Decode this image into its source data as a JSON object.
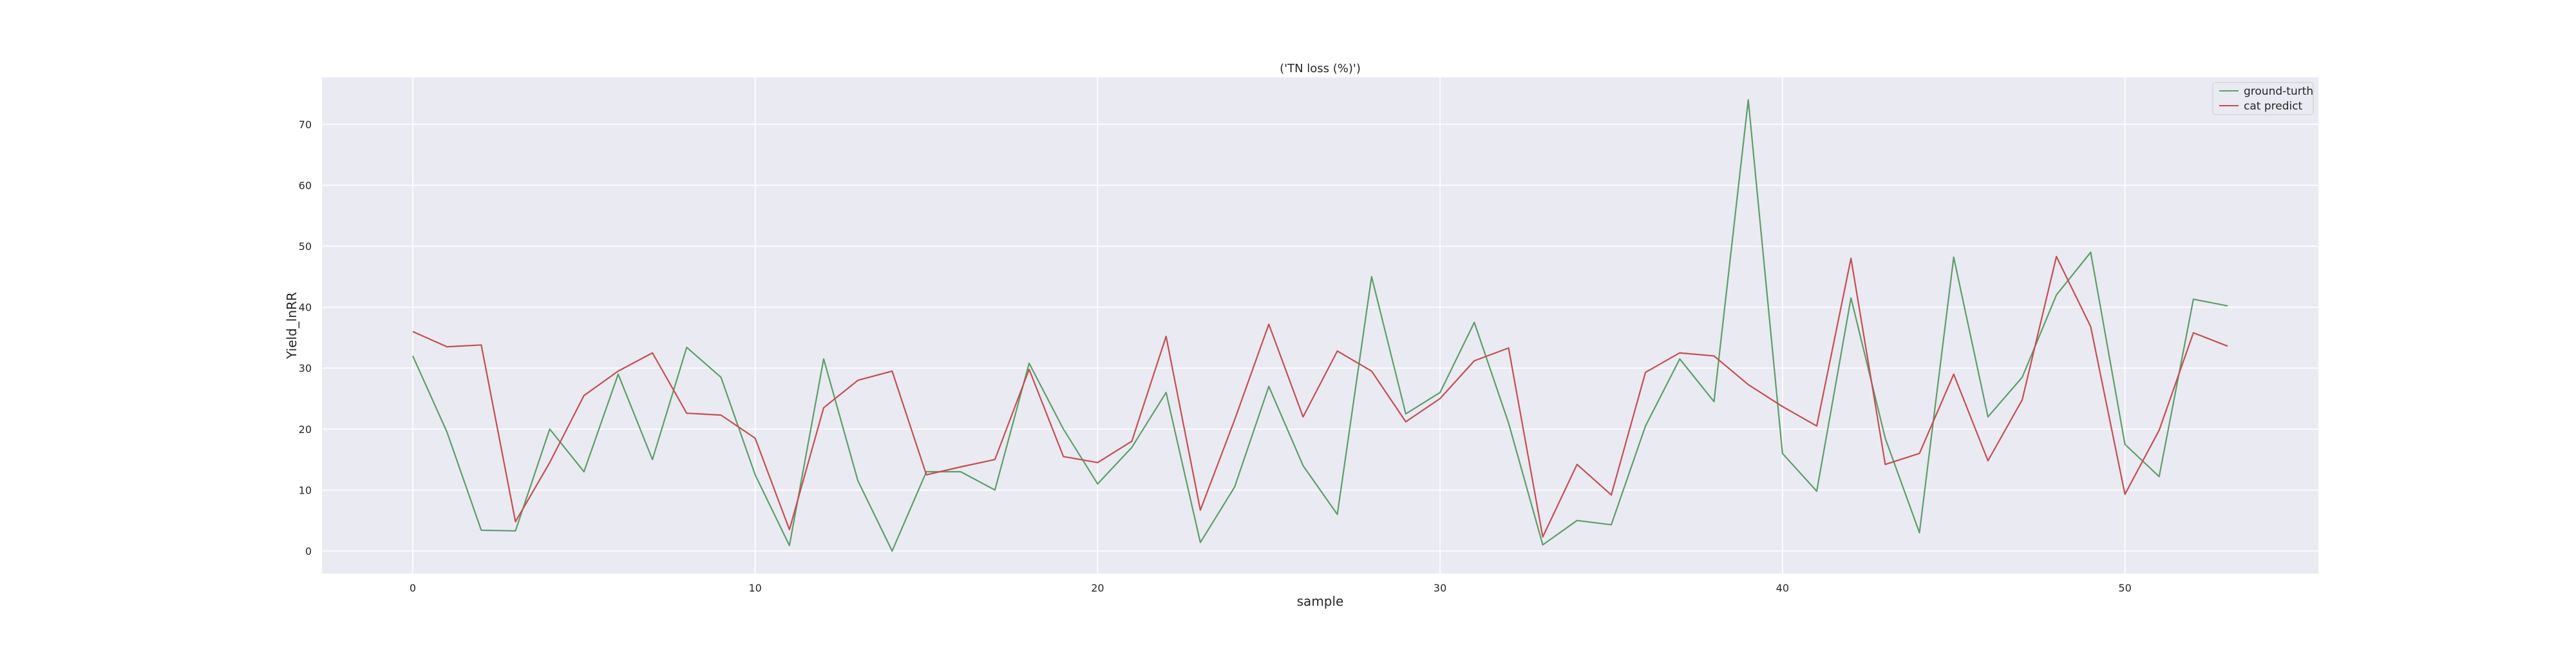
{
  "chart_data": {
    "type": "line",
    "title": "('TN loss (%)')",
    "xlabel": "sample",
    "ylabel": "Yield_lnRR",
    "xlim": [
      -2.65,
      55.65
    ],
    "ylim": [
      -3.7,
      77.7
    ],
    "xticks": [
      0,
      10,
      20,
      30,
      40,
      50
    ],
    "yticks": [
      0,
      10,
      20,
      30,
      40,
      50,
      60,
      70
    ],
    "grid": true,
    "legend_position": "top-right",
    "series": [
      {
        "name": "ground-turth",
        "color": "#5c9e6a",
        "x": [
          0,
          1,
          2,
          3,
          4,
          5,
          6,
          7,
          8,
          9,
          10,
          11,
          12,
          13,
          14,
          15,
          16,
          17,
          18,
          19,
          20,
          21,
          22,
          23,
          24,
          25,
          26,
          27,
          28,
          29,
          30,
          31,
          32,
          33,
          34,
          35,
          36,
          37,
          38,
          39,
          40,
          41,
          42,
          43,
          44,
          45,
          46,
          47,
          48,
          49,
          50,
          51,
          52,
          53
        ],
        "values": [
          32.0,
          19.5,
          3.4,
          3.3,
          20.0,
          13.0,
          29.0,
          15.0,
          33.4,
          28.5,
          12.5,
          0.9,
          31.5,
          11.5,
          0.0,
          13.0,
          13.0,
          10.0,
          30.8,
          20.0,
          11.0,
          17.0,
          26.0,
          1.4,
          10.5,
          27.0,
          14.0,
          6.0,
          45.0,
          22.5,
          26.0,
          37.5,
          21.0,
          1.0,
          5.0,
          4.3,
          20.5,
          31.5,
          24.5,
          74.0,
          16.0,
          9.8,
          41.5,
          18.5,
          3.0,
          48.2,
          22.0,
          28.5,
          42.0,
          49.0,
          17.5,
          12.2,
          41.3,
          40.2
        ]
      },
      {
        "name": "cat predict",
        "color": "#c44e52",
        "x": [
          0,
          1,
          2,
          3,
          4,
          5,
          6,
          7,
          8,
          9,
          10,
          11,
          12,
          13,
          14,
          15,
          16,
          17,
          18,
          19,
          20,
          21,
          22,
          23,
          24,
          25,
          26,
          27,
          28,
          29,
          30,
          31,
          32,
          33,
          34,
          35,
          36,
          37,
          38,
          39,
          40,
          41,
          42,
          43,
          44,
          45,
          46,
          47,
          48,
          49,
          50,
          51,
          52,
          53
        ],
        "values": [
          36.0,
          33.5,
          33.8,
          4.8,
          14.5,
          25.5,
          29.5,
          32.5,
          22.6,
          22.3,
          18.5,
          3.5,
          23.5,
          28.0,
          29.5,
          12.5,
          13.8,
          15.0,
          29.8,
          15.5,
          14.5,
          18.0,
          35.2,
          6.7,
          21.5,
          37.2,
          22.0,
          32.8,
          29.5,
          21.2,
          25.0,
          31.2,
          33.3,
          2.3,
          14.2,
          9.2,
          29.3,
          32.5,
          32.0,
          27.3,
          23.7,
          20.5,
          48.0,
          14.2,
          16.0,
          29.0,
          14.8,
          24.8,
          48.3,
          36.8,
          9.3,
          19.8,
          35.8,
          33.6
        ]
      }
    ]
  }
}
